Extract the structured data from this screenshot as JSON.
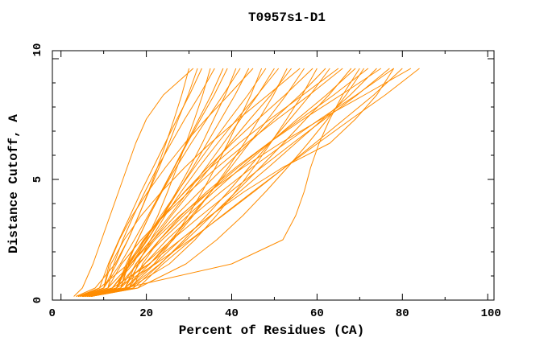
{
  "chart_data": {
    "type": "line",
    "title": "T0957s1-D1",
    "xlabel": "Percent of Residues (CA)",
    "ylabel": "Distance Cutoff, A",
    "xlim": [
      0,
      100
    ],
    "ylim": [
      0,
      10
    ],
    "x_major_ticks": [
      0,
      20,
      40,
      60,
      80,
      100
    ],
    "x_minor_ticks": [
      10,
      30,
      50,
      70,
      90
    ],
    "y_major_ticks": [
      0,
      5,
      10
    ],
    "y_minor_ticks": [
      1,
      2,
      3,
      4,
      6,
      7,
      8,
      9
    ],
    "grid": false,
    "legend": "none",
    "line_color": "#ff8c00",
    "axis_color": "#000000",
    "background_color": "#ffffff",
    "cutoffs": [
      0.15,
      0.5,
      1.5,
      2.5,
      3.5,
      4.5,
      5.5,
      6.5,
      7.5,
      8.5,
      9.6
    ],
    "series_x": [
      [
        3.5,
        8,
        12.7,
        15.7,
        18.2,
        20.5,
        22.6,
        24.6,
        26.5,
        28.3,
        30
      ],
      [
        4,
        10,
        13,
        15.7,
        18.2,
        20.6,
        23,
        25.3,
        27.5,
        29.8,
        32
      ],
      [
        4,
        9,
        11.1,
        13.6,
        16.2,
        18.8,
        21.6,
        24.4,
        27.2,
        30.1,
        33
      ],
      [
        5,
        12,
        16.9,
        20,
        22.7,
        25,
        27.2,
        29.3,
        31.3,
        33.2,
        35
      ],
      [
        4.5,
        11,
        12.4,
        14.5,
        17,
        19.7,
        22.6,
        25.8,
        29,
        32.5,
        36
      ],
      [
        4,
        10,
        13.9,
        17.2,
        20.4,
        23.5,
        26.5,
        29.4,
        32.3,
        35.2,
        38
      ],
      [
        5,
        13,
        15.3,
        18,
        20.7,
        23.6,
        26.6,
        29.6,
        32.7,
        35.9,
        39
      ],
      [
        4,
        9,
        15.8,
        20.2,
        23.8,
        27.1,
        30.2,
        33.1,
        35.8,
        38.5,
        41
      ],
      [
        5.5,
        14,
        15.6,
        18,
        20.7,
        23.7,
        27,
        30.5,
        34.2,
        38,
        42
      ],
      [
        5,
        12,
        16.4,
        20.3,
        23.9,
        27.4,
        30.9,
        34.2,
        37.5,
        40.8,
        44
      ],
      [
        4,
        10,
        11.3,
        13.7,
        16.7,
        20.4,
        24.5,
        29,
        34,
        39.3,
        45
      ],
      [
        6,
        15,
        21.8,
        26.2,
        29.8,
        33.1,
        36.2,
        39.1,
        41.8,
        44.5,
        47
      ],
      [
        5,
        13,
        16.1,
        19.7,
        23.4,
        27.3,
        31.3,
        35.4,
        39.5,
        43.8,
        48
      ],
      [
        4.5,
        11,
        16.4,
        21.1,
        25.5,
        29.8,
        34,
        38.1,
        42.1,
        46.1,
        50
      ],
      [
        6.5,
        16,
        18,
        21,
        24.4,
        28.2,
        32.3,
        36.7,
        41.2,
        46,
        51
      ],
      [
        5,
        12,
        20.8,
        26.3,
        31,
        35.2,
        39.2,
        42.9,
        46.4,
        49.8,
        53
      ],
      [
        5.5,
        14,
        17.6,
        21.6,
        25.9,
        30.4,
        35,
        39.6,
        44.3,
        49.2,
        54
      ],
      [
        4,
        10,
        11.7,
        14.8,
        18.8,
        23.6,
        29,
        35,
        41.6,
        48.5,
        56
      ],
      [
        6,
        15,
        20.8,
        25.8,
        30.6,
        35.2,
        39.8,
        44.1,
        48.5,
        52.8,
        57
      ],
      [
        5,
        13,
        15.6,
        19.5,
        24,
        29,
        34.4,
        40.1,
        46.2,
        52.5,
        59
      ],
      [
        6.5,
        16,
        25.4,
        31.4,
        36.4,
        40.9,
        45.2,
        49.1,
        52.9,
        56.5,
        60
      ],
      [
        5,
        12,
        16.4,
        21.6,
        26.9,
        32.5,
        38.2,
        44,
        49.9,
        56,
        62
      ],
      [
        7,
        17,
        23.3,
        28.9,
        34.1,
        39.2,
        44.1,
        48.9,
        53.7,
        58.4,
        63
      ],
      [
        5.5,
        14,
        15.9,
        19.3,
        23.8,
        29.1,
        35.1,
        41.7,
        49,
        56.7,
        65
      ],
      [
        4.5,
        11,
        14.2,
        18.8,
        24.2,
        30.1,
        36.6,
        43.5,
        50.7,
        58.2,
        66
      ],
      [
        6.5,
        16,
        23.2,
        29.4,
        35.3,
        41.1,
        46.7,
        52.1,
        57.4,
        62.8,
        68
      ],
      [
        5,
        13,
        18,
        23.7,
        29.7,
        35.9,
        42.3,
        48.8,
        55.4,
        62.2,
        69
      ],
      [
        7,
        18,
        29.3,
        36.5,
        42.6,
        48,
        53.1,
        57.9,
        62.5,
        66.8,
        71
      ],
      [
        6,
        15,
        18.3,
        23.1,
        28.7,
        34.8,
        41.5,
        48.6,
        56.1,
        63.9,
        72
      ],
      [
        5,
        12,
        20.6,
        28,
        35.1,
        41.9,
        48.6,
        55,
        61.4,
        67.8,
        74
      ],
      [
        7,
        17,
        19.1,
        23.1,
        28.1,
        34.2,
        41,
        48.6,
        56.8,
        65.6,
        75
      ],
      [
        5.5,
        14,
        19.6,
        26,
        32.8,
        39.8,
        47,
        54.3,
        61.8,
        69.4,
        77
      ],
      [
        6.5,
        16,
        19.6,
        24.8,
        30.9,
        37.6,
        44.8,
        52.6,
        60.7,
        69.2,
        78
      ],
      [
        5,
        13,
        22.2,
        30.3,
        37.9,
        45.3,
        52.5,
        59.5,
        66.4,
        73.3,
        80
      ],
      [
        6,
        15,
        17.5,
        22,
        27.9,
        34.8,
        42.7,
        51.4,
        61,
        71.1,
        82
      ],
      [
        7,
        18,
        23.9,
        30.6,
        37.7,
        45,
        52.5,
        60.2,
        68,
        76,
        84
      ],
      [
        6,
        15,
        40,
        52,
        55,
        57,
        58.5,
        60.5,
        63,
        66,
        70
      ],
      [
        6.5,
        16,
        22,
        28,
        35,
        43,
        52,
        63,
        69,
        74,
        78
      ],
      [
        3,
        5,
        7.5,
        9.5,
        11.5,
        13.5,
        15.5,
        17.5,
        20,
        24,
        31
      ]
    ]
  }
}
